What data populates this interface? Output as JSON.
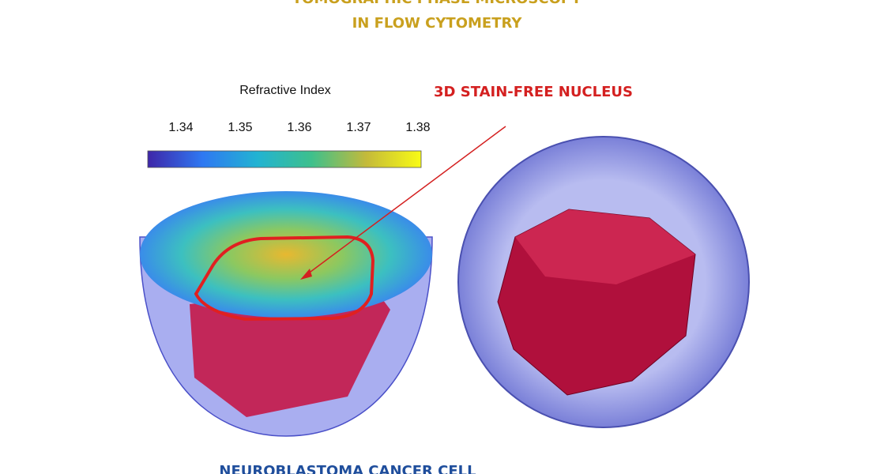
{
  "header": {
    "title_lines": [
      "TOMOGRAPHIC PHASE MICROSCOPY",
      "IN FLOW CYTOMETRY"
    ]
  },
  "colorbar": {
    "label": "Refractive Index",
    "ticks": [
      1.34,
      1.35,
      1.36,
      1.37,
      1.38
    ]
  },
  "annotation": "3D STAIN-FREE NUCLEUS",
  "caption": "NEUROBLASTOMA CANCER CELL"
}
